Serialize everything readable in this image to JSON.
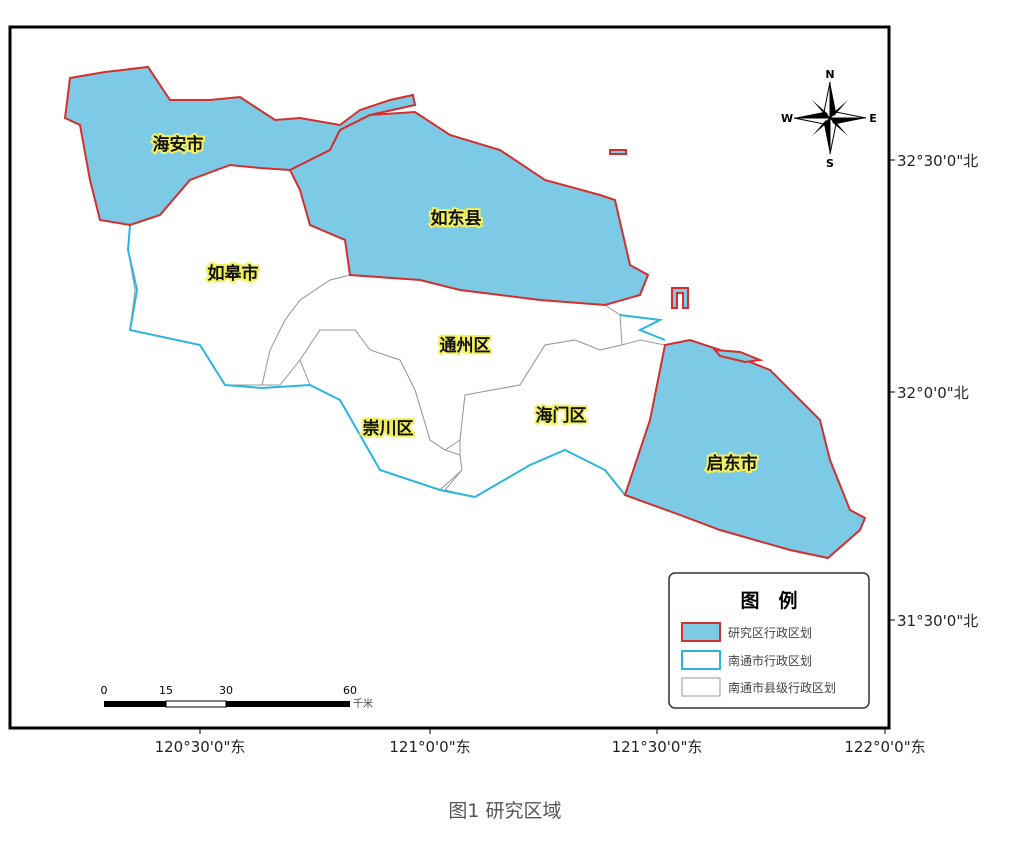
{
  "regions": [
    {
      "name": "海安市",
      "study_area": true
    },
    {
      "name": "如东县",
      "study_area": true
    },
    {
      "name": "如皋市",
      "study_area": false
    },
    {
      "name": "通州区",
      "study_area": false
    },
    {
      "name": "崇川区",
      "study_area": false
    },
    {
      "name": "海门区",
      "study_area": false
    },
    {
      "name": "启东市",
      "study_area": true
    }
  ],
  "lat_labels": [
    "32°30'0\"北",
    "32°0'0\"北",
    "31°30'0\"北"
  ],
  "lon_labels": [
    "120°30'0\"东",
    "121°0'0\"东",
    "121°30'0\"东",
    "122°0'0\"东"
  ],
  "compass": {
    "n": "N",
    "s": "S",
    "e": "E",
    "w": "W"
  },
  "scale_bar": {
    "ticks": [
      "0",
      "15",
      "30",
      "60"
    ],
    "unit": "千米"
  },
  "legend": {
    "title": "图　例",
    "items": [
      {
        "label": "研究区行政区划",
        "fill": "#7ccae5",
        "stroke": "#d32f2f"
      },
      {
        "label": "南通市行政区划",
        "fill": "#ffffff",
        "stroke": "#29b6e0"
      },
      {
        "label": "南通市县级行政区划",
        "fill": "#ffffff",
        "stroke": "#999999"
      }
    ]
  },
  "caption": "图1  研究区域",
  "colors": {
    "study_fill": "#7ccae5",
    "study_stroke": "#d32f2f",
    "city_stroke": "#29b6e0",
    "county_stroke": "#999999"
  }
}
